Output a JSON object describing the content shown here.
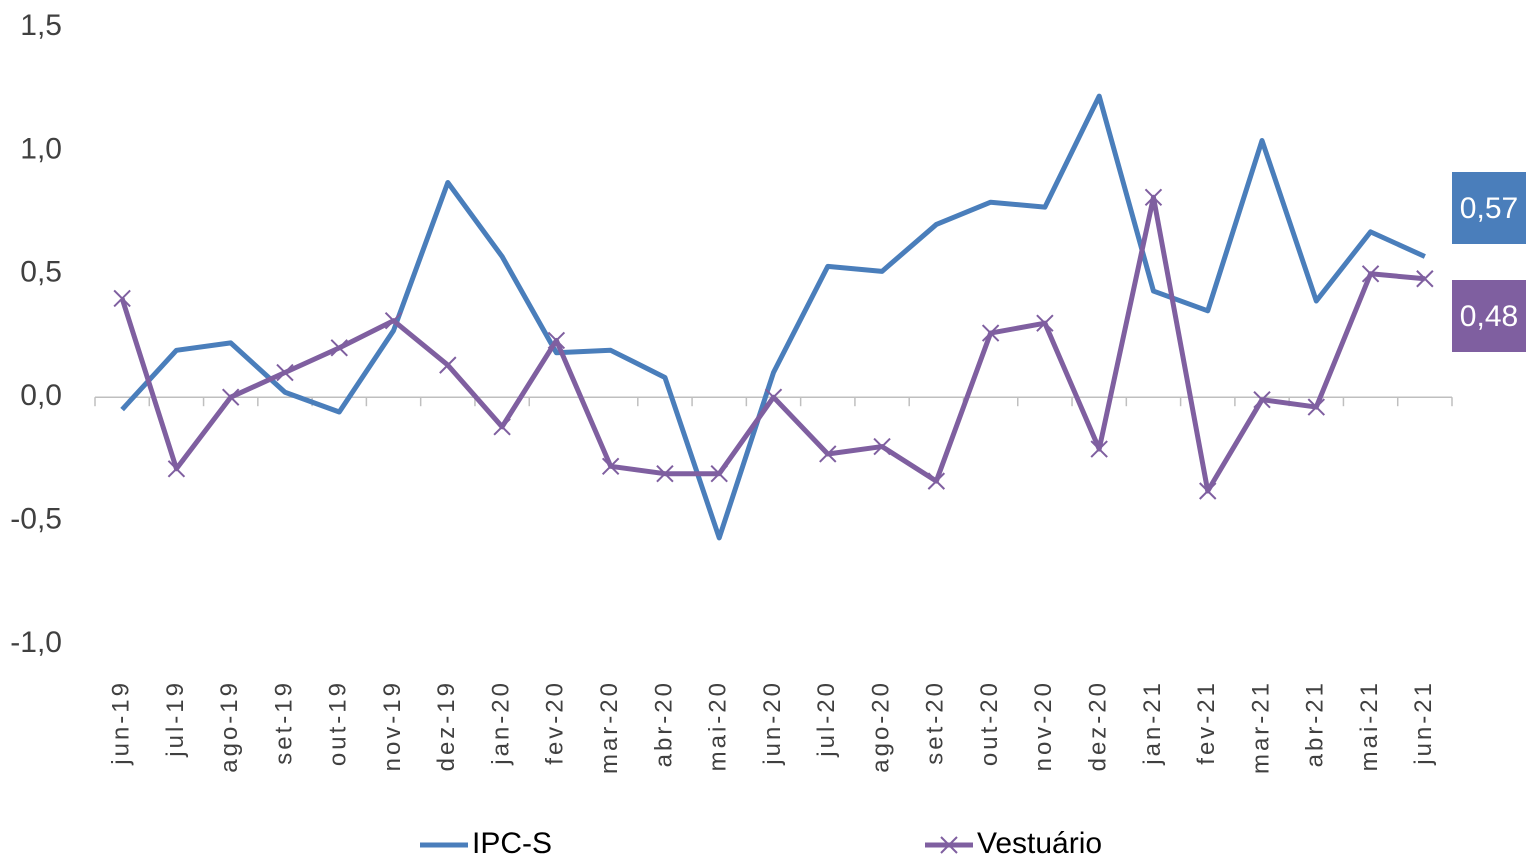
{
  "chart_data": {
    "type": "line",
    "categories": [
      "jun-19",
      "jul-19",
      "ago-19",
      "set-19",
      "out-19",
      "nov-19",
      "dez-19",
      "jan-20",
      "fev-20",
      "mar-20",
      "abr-20",
      "mai-20",
      "jun-20",
      "jul-20",
      "ago-20",
      "set-20",
      "out-20",
      "nov-20",
      "dez-20",
      "jan-21",
      "fev-21",
      "mar-21",
      "abr-21",
      "mai-21",
      "jun-21"
    ],
    "series": [
      {
        "name": "IPC-S",
        "color": "#4a7ebb",
        "marker": "none",
        "values": [
          -0.05,
          0.19,
          0.22,
          0.02,
          -0.06,
          0.27,
          0.87,
          0.57,
          0.18,
          0.19,
          0.08,
          -0.57,
          0.1,
          0.53,
          0.51,
          0.7,
          0.79,
          0.77,
          1.22,
          0.43,
          0.35,
          1.04,
          0.39,
          0.67,
          0.57
        ],
        "value_labels": [
          null,
          null,
          null,
          null,
          null,
          null,
          null,
          null,
          null,
          null,
          null,
          null,
          null,
          null,
          null,
          null,
          null,
          null,
          null,
          null,
          null,
          null,
          null,
          null,
          "0,57"
        ]
      },
      {
        "name": "Vestuário",
        "color": "#7f5fa0",
        "marker": "x",
        "values": [
          0.4,
          -0.29,
          0.0,
          0.1,
          0.2,
          0.31,
          0.13,
          -0.12,
          0.23,
          -0.28,
          -0.31,
          -0.31,
          0.0,
          -0.23,
          -0.2,
          -0.34,
          0.26,
          0.3,
          -0.21,
          0.81,
          -0.38,
          -0.01,
          -0.04,
          0.5,
          0.48
        ],
        "value_labels": [
          null,
          null,
          null,
          null,
          null,
          null,
          null,
          null,
          null,
          null,
          null,
          null,
          null,
          null,
          null,
          null,
          null,
          null,
          null,
          null,
          null,
          null,
          null,
          null,
          "0,48"
        ]
      }
    ],
    "ylim": [
      -1,
      1.5
    ],
    "yticks": [
      {
        "value": -1,
        "label": "-1,0"
      },
      {
        "value": -0.5,
        "label": "-0,5"
      },
      {
        "value": 0,
        "label": "0,0"
      },
      {
        "value": 0.5,
        "label": "0,5"
      },
      {
        "value": 1,
        "label": "1,0"
      },
      {
        "value": 1.5,
        "label": "1,5"
      }
    ],
    "grid": false,
    "legend": "bottom"
  }
}
